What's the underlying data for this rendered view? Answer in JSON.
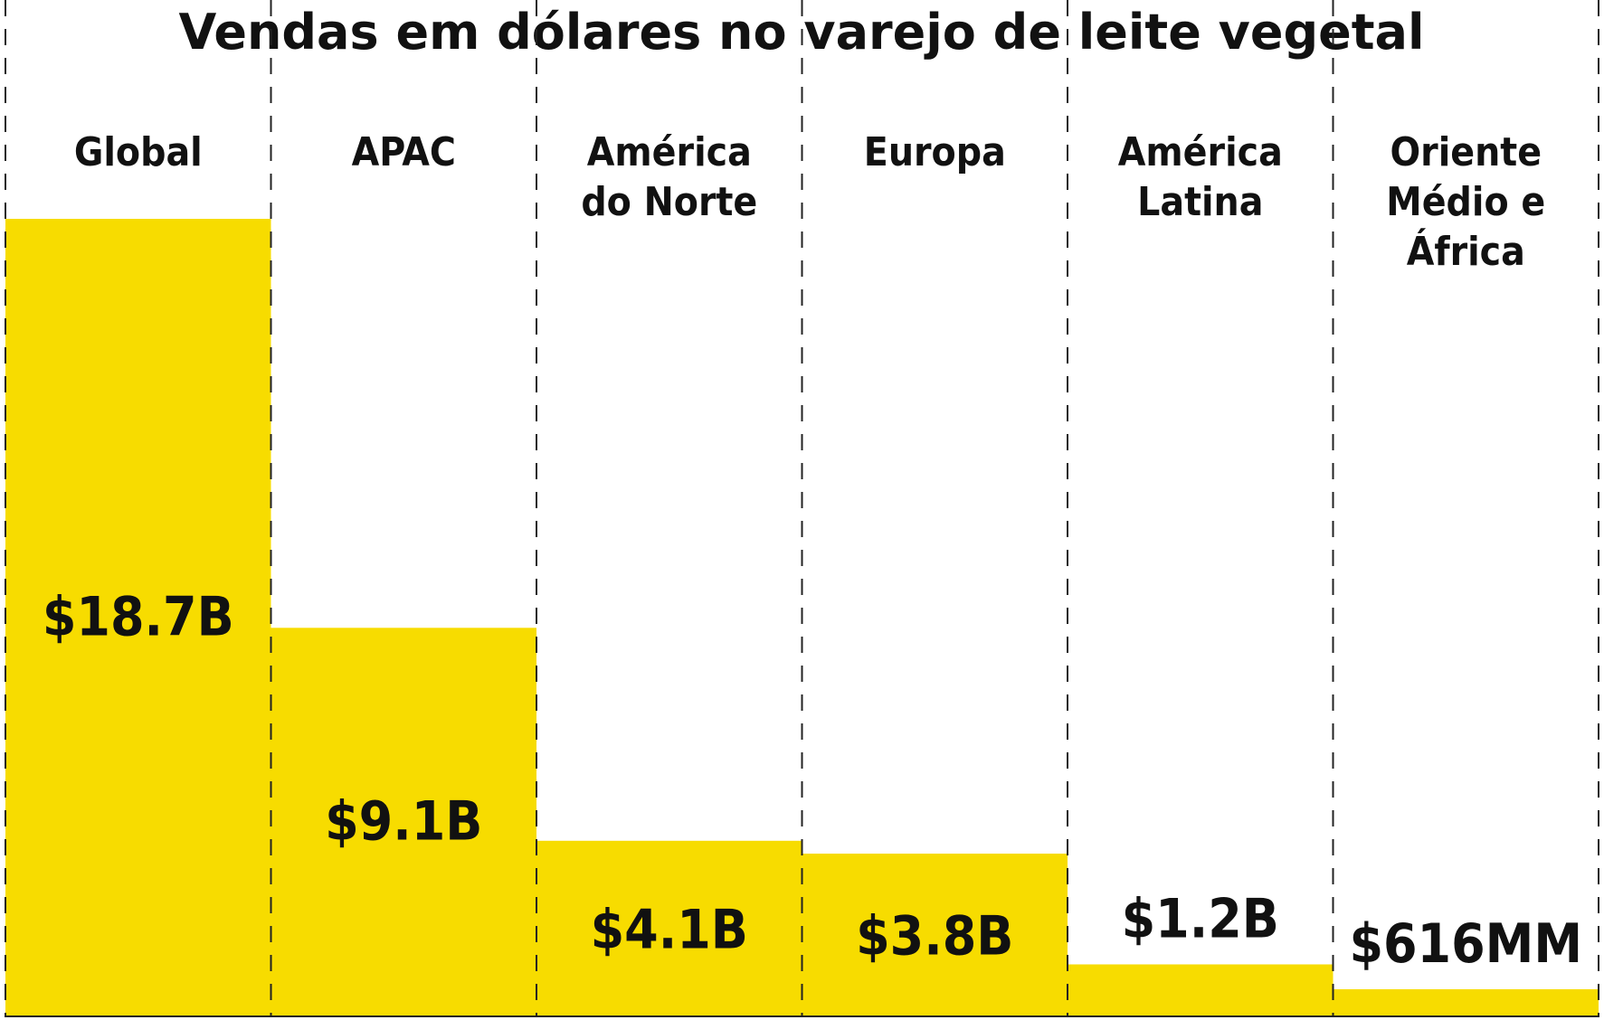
{
  "title": "Vendas em dólares no varejo de leite vegetal",
  "colors": {
    "bar": "#f7dc00",
    "text": "#111111",
    "divider": "#222222",
    "background": "#ffffff"
  },
  "chart_data": {
    "type": "bar",
    "title": "Vendas em dólares no varejo de leite vegetal",
    "xlabel": "",
    "ylabel": "",
    "categories": [
      [
        "Global"
      ],
      [
        "APAC"
      ],
      [
        "América",
        "do Norte"
      ],
      [
        "Europa"
      ],
      [
        "América",
        "Latina"
      ],
      [
        "Oriente",
        "Médio e",
        "África"
      ]
    ],
    "values": [
      18.7,
      9.1,
      4.1,
      3.8,
      1.2,
      0.616
    ],
    "value_labels": [
      "$18.7B",
      "$9.1B",
      "$4.1B",
      "$3.8B",
      "$1.2B",
      "$616MM"
    ],
    "unit": "billions USD",
    "ylim": [
      0,
      18.7
    ],
    "grid": false,
    "legend": "none",
    "separators": "dashed vertical lines between categories"
  }
}
